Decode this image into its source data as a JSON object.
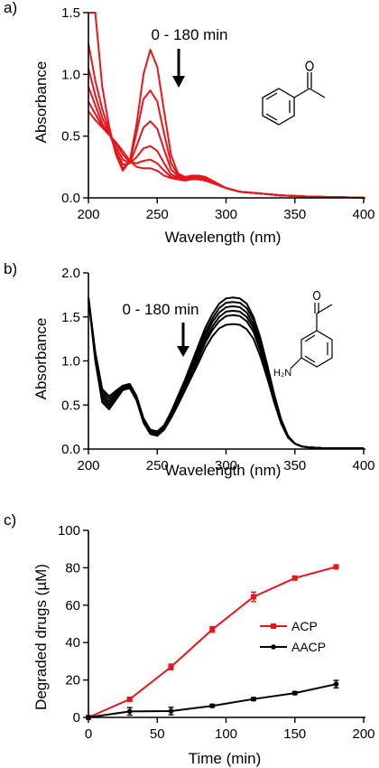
{
  "chart_data": [
    {
      "panel_label": "a)",
      "type": "line",
      "xlabel": "Wavelength (nm)",
      "ylabel": "Absorbance",
      "xlim": [
        200,
        400
      ],
      "ylim": [
        0,
        1.5
      ],
      "xticks": [
        "200",
        "250",
        "300",
        "350",
        "400"
      ],
      "yticks": [
        "0.0",
        "0.5",
        "1.0",
        "1.5"
      ],
      "annotation": "0 - 180 min",
      "color": "#e8161b",
      "x": [
        200,
        205,
        210,
        215,
        220,
        225,
        230,
        235,
        240,
        245,
        250,
        255,
        260,
        265,
        270,
        275,
        280,
        285,
        290,
        295,
        300,
        310,
        320,
        330,
        340,
        350,
        360,
        370,
        380,
        390,
        400
      ],
      "series": [
        {
          "values": [
            1.5,
            1.5,
            0.9,
            0.58,
            0.35,
            0.22,
            0.3,
            0.6,
            1.0,
            1.2,
            1.06,
            0.7,
            0.35,
            0.2,
            0.17,
            0.18,
            0.18,
            0.17,
            0.14,
            0.11,
            0.08,
            0.05,
            0.04,
            0.03,
            0.02,
            0.015,
            0.01,
            0.008,
            0.006,
            0.004,
            0.003
          ]
        },
        {
          "values": [
            1.25,
            0.95,
            0.72,
            0.55,
            0.36,
            0.24,
            0.29,
            0.53,
            0.8,
            0.87,
            0.78,
            0.52,
            0.28,
            0.19,
            0.16,
            0.17,
            0.17,
            0.16,
            0.13,
            0.1,
            0.08,
            0.05,
            0.04,
            0.03,
            0.02,
            0.015,
            0.01,
            0.008,
            0.006,
            0.004,
            0.003
          ]
        },
        {
          "values": [
            1.05,
            0.83,
            0.65,
            0.53,
            0.38,
            0.27,
            0.28,
            0.42,
            0.57,
            0.62,
            0.56,
            0.39,
            0.23,
            0.18,
            0.16,
            0.16,
            0.16,
            0.15,
            0.13,
            0.1,
            0.08,
            0.05,
            0.04,
            0.03,
            0.02,
            0.015,
            0.01,
            0.008,
            0.006,
            0.004,
            0.003
          ]
        },
        {
          "values": [
            0.9,
            0.75,
            0.6,
            0.52,
            0.41,
            0.31,
            0.28,
            0.33,
            0.4,
            0.42,
            0.38,
            0.28,
            0.19,
            0.17,
            0.15,
            0.16,
            0.16,
            0.15,
            0.13,
            0.1,
            0.08,
            0.05,
            0.04,
            0.03,
            0.02,
            0.015,
            0.01,
            0.008,
            0.006,
            0.004,
            0.003
          ]
        },
        {
          "values": [
            0.78,
            0.68,
            0.58,
            0.52,
            0.44,
            0.35,
            0.29,
            0.28,
            0.3,
            0.31,
            0.28,
            0.22,
            0.17,
            0.16,
            0.15,
            0.15,
            0.15,
            0.14,
            0.12,
            0.1,
            0.08,
            0.05,
            0.04,
            0.03,
            0.02,
            0.015,
            0.01,
            0.008,
            0.006,
            0.004,
            0.003
          ]
        },
        {
          "values": [
            0.7,
            0.63,
            0.57,
            0.51,
            0.45,
            0.38,
            0.3,
            0.25,
            0.24,
            0.24,
            0.22,
            0.18,
            0.16,
            0.15,
            0.14,
            0.15,
            0.15,
            0.14,
            0.12,
            0.1,
            0.08,
            0.05,
            0.04,
            0.03,
            0.02,
            0.015,
            0.01,
            0.008,
            0.006,
            0.004,
            0.003
          ]
        }
      ]
    },
    {
      "panel_label": "b)",
      "type": "line",
      "xlabel": "Wavelength (nm)",
      "ylabel": "Absorbance",
      "xlim": [
        200,
        400
      ],
      "ylim": [
        0,
        2.0
      ],
      "xticks": [
        "200",
        "250",
        "300",
        "350",
        "400"
      ],
      "yticks": [
        "0.0",
        "0.5",
        "1.0",
        "1.5",
        "2.0"
      ],
      "annotation": "0 - 180 min",
      "color": "#000000",
      "x": [
        200,
        205,
        210,
        215,
        220,
        225,
        230,
        235,
        240,
        245,
        250,
        255,
        260,
        265,
        270,
        275,
        280,
        285,
        290,
        295,
        300,
        305,
        310,
        315,
        320,
        325,
        330,
        335,
        340,
        345,
        350,
        355,
        360,
        370,
        380,
        390,
        400
      ],
      "series": [
        {
          "values": [
            1.72,
            1.1,
            0.68,
            0.6,
            0.66,
            0.72,
            0.74,
            0.6,
            0.35,
            0.22,
            0.2,
            0.27,
            0.42,
            0.6,
            0.78,
            0.98,
            1.18,
            1.38,
            1.53,
            1.65,
            1.71,
            1.72,
            1.71,
            1.65,
            1.5,
            1.26,
            0.95,
            0.62,
            0.34,
            0.15,
            0.06,
            0.03,
            0.02,
            0.01,
            0.01,
            0.01,
            0.01
          ]
        },
        {
          "values": [
            1.72,
            1.08,
            0.65,
            0.57,
            0.64,
            0.71,
            0.73,
            0.59,
            0.34,
            0.21,
            0.19,
            0.26,
            0.4,
            0.58,
            0.76,
            0.95,
            1.14,
            1.33,
            1.48,
            1.6,
            1.66,
            1.67,
            1.66,
            1.6,
            1.46,
            1.22,
            0.92,
            0.6,
            0.33,
            0.15,
            0.06,
            0.03,
            0.02,
            0.01,
            0.01,
            0.01,
            0.01
          ]
        },
        {
          "values": [
            1.72,
            1.06,
            0.62,
            0.54,
            0.62,
            0.7,
            0.72,
            0.58,
            0.33,
            0.2,
            0.18,
            0.25,
            0.39,
            0.56,
            0.74,
            0.92,
            1.1,
            1.29,
            1.44,
            1.55,
            1.61,
            1.62,
            1.61,
            1.55,
            1.41,
            1.18,
            0.89,
            0.58,
            0.32,
            0.14,
            0.06,
            0.03,
            0.02,
            0.01,
            0.01,
            0.01,
            0.01
          ]
        },
        {
          "values": [
            1.72,
            1.04,
            0.59,
            0.51,
            0.6,
            0.69,
            0.71,
            0.57,
            0.32,
            0.19,
            0.17,
            0.24,
            0.38,
            0.54,
            0.72,
            0.89,
            1.07,
            1.25,
            1.39,
            1.5,
            1.56,
            1.57,
            1.56,
            1.5,
            1.37,
            1.15,
            0.86,
            0.57,
            0.31,
            0.14,
            0.06,
            0.03,
            0.02,
            0.01,
            0.01,
            0.01,
            0.01
          ]
        },
        {
          "values": [
            1.72,
            1.02,
            0.56,
            0.48,
            0.58,
            0.68,
            0.7,
            0.56,
            0.31,
            0.18,
            0.16,
            0.23,
            0.36,
            0.52,
            0.69,
            0.86,
            1.03,
            1.21,
            1.35,
            1.45,
            1.51,
            1.52,
            1.51,
            1.45,
            1.33,
            1.11,
            0.84,
            0.55,
            0.3,
            0.14,
            0.06,
            0.03,
            0.02,
            0.01,
            0.01,
            0.01,
            0.01
          ]
        },
        {
          "values": [
            1.72,
            1.0,
            0.53,
            0.45,
            0.56,
            0.67,
            0.69,
            0.55,
            0.3,
            0.17,
            0.15,
            0.22,
            0.35,
            0.5,
            0.66,
            0.82,
            0.98,
            1.15,
            1.28,
            1.37,
            1.41,
            1.42,
            1.41,
            1.36,
            1.25,
            1.05,
            0.8,
            0.53,
            0.29,
            0.13,
            0.06,
            0.03,
            0.02,
            0.01,
            0.01,
            0.01,
            0.01
          ]
        }
      ]
    },
    {
      "panel_label": "c)",
      "type": "line",
      "xlabel": "Time (min)",
      "ylabel": "Degraded drugs (µM)",
      "xlim": [
        0,
        200
      ],
      "ylim": [
        0,
        100
      ],
      "xticks": [
        "0",
        "50",
        "100",
        "150",
        "200"
      ],
      "yticks": [
        "0",
        "20",
        "40",
        "60",
        "80",
        "100"
      ],
      "legend_position": "right",
      "x": [
        0,
        30,
        60,
        90,
        120,
        150,
        180
      ],
      "series": [
        {
          "name": "ACP",
          "color": "#e8161b",
          "values": [
            0,
            9.7,
            27,
            47,
            64.5,
            74.5,
            80.5
          ],
          "errors": [
            0,
            0.8,
            1.5,
            1.5,
            2.5,
            1.0,
            1.0
          ]
        },
        {
          "name": "AACP",
          "color": "#000000",
          "values": [
            0,
            3.2,
            3.4,
            6.2,
            9.8,
            13.0,
            17.8
          ],
          "errors": [
            0,
            2.0,
            2.0,
            0.8,
            0.8,
            0.8,
            2.0
          ]
        }
      ]
    }
  ],
  "molecules": {
    "aacp_amine_label": "H₂N"
  }
}
